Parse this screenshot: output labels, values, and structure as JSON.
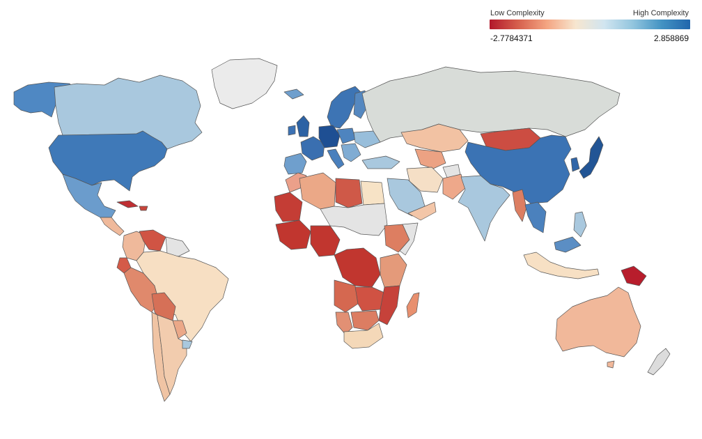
{
  "legend": {
    "low_label": "Low Complexity",
    "high_label": "High Complexity",
    "min_value": "-2.7784371",
    "max_value": "2.858869",
    "colors": [
      "#b2182b",
      "#d6604d",
      "#f4a582",
      "#f7e6cf",
      "#d1e5f0",
      "#92c5de",
      "#4393c3",
      "#2166ac"
    ],
    "no_data_color": "#e9e9e9"
  }
}
